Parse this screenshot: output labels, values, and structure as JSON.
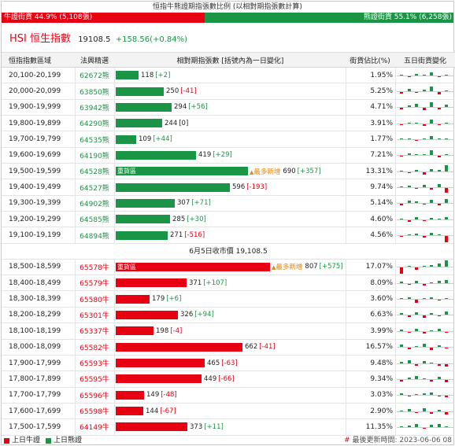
{
  "ratio_header": {
    "title": "恒指牛熊證期指張數比例 (以相對期指張數計算)",
    "bull_label": "牛證街貨 44.9% (5,108張)",
    "bear_label": "熊證街貨 55.1% (6,258張)",
    "bull_fraction": 0.449,
    "bear_fraction": 0.551
  },
  "index": {
    "name": "HSI 恒生指數",
    "value": "19108.5",
    "change": "+158.56(+0.84%)"
  },
  "table": {
    "headers": {
      "range": "恒指指數區域",
      "code": "法興精選",
      "contracts": "相對期指張數 [括號內為一日變化]",
      "ratio": "街貨佔比(%)",
      "five_day": "五日街貨變化"
    },
    "heavy_label": "重貨區",
    "new_high_label": "最多新增",
    "bear_rows": [
      {
        "range": "20,100-20,199",
        "code": "62672熊",
        "count": "118",
        "delta": "[+2]",
        "sign": "pos",
        "ratio": "1.95%",
        "spark": [
          1,
          -1,
          2,
          1,
          4,
          -1,
          1
        ]
      },
      {
        "range": "20,000-20,099",
        "code": "63850熊",
        "count": "250",
        "delta": "[-41]",
        "sign": "neg",
        "ratio": "5.25%",
        "spark": [
          -2,
          3,
          -1,
          2,
          6,
          -3,
          1
        ]
      },
      {
        "range": "19,900-19,999",
        "code": "63942熊",
        "count": "294",
        "delta": "[+56]",
        "sign": "pos",
        "ratio": "4.71%",
        "spark": [
          -2,
          2,
          4,
          -3,
          6,
          -2,
          3
        ]
      },
      {
        "range": "19,800-19,899",
        "code": "64290熊",
        "count": "244",
        "delta": "[0]",
        "sign": "zero",
        "ratio": "3.91%",
        "spark": [
          -1,
          1,
          1,
          -2,
          5,
          -1,
          1
        ]
      },
      {
        "range": "19,700-19,799",
        "code": "64535熊",
        "count": "109",
        "delta": "[+44]",
        "sign": "pos",
        "ratio": "1.77%",
        "spark": [
          0,
          1,
          -1,
          1,
          4,
          1,
          0
        ]
      },
      {
        "range": "19,600-19,699",
        "code": "64190熊",
        "count": "419",
        "delta": "[+29]",
        "sign": "pos",
        "ratio": "7.21%",
        "spark": [
          -1,
          2,
          1,
          1,
          6,
          -2,
          1
        ]
      },
      {
        "range": "19,500-19,599",
        "code": "64528熊",
        "count": "690",
        "delta": "[+357]",
        "sign": "pos",
        "ratio": "13.31%",
        "spark": [
          1,
          -1,
          2,
          -3,
          3,
          2,
          8
        ],
        "heavy": true,
        "new_high": true
      },
      {
        "range": "19,400-19,499",
        "code": "64527熊",
        "count": "596",
        "delta": "[-193]",
        "sign": "neg",
        "ratio": "9.74%",
        "spark": [
          1,
          2,
          -1,
          3,
          -2,
          4,
          -6
        ]
      },
      {
        "range": "19,300-19,399",
        "code": "64902熊",
        "count": "307",
        "delta": "[+71]",
        "sign": "pos",
        "ratio": "5.14%",
        "spark": [
          -2,
          3,
          2,
          -1,
          4,
          -2,
          5
        ]
      },
      {
        "range": "19,200-19,299",
        "code": "64585熊",
        "count": "285",
        "delta": "[+30]",
        "sign": "pos",
        "ratio": "4.60%",
        "spark": [
          1,
          -2,
          3,
          -1,
          2,
          1,
          3
        ]
      },
      {
        "range": "19,100-19,199",
        "code": "64894熊",
        "count": "271",
        "delta": "[-516]",
        "sign": "neg",
        "ratio": "4.56%",
        "spark": [
          -1,
          1,
          2,
          -2,
          3,
          1,
          -8
        ]
      }
    ],
    "mid_label": "6月5日收市價 19,108.5",
    "bull_rows": [
      {
        "range": "18,500-18,599",
        "code": "65578牛",
        "count": "807",
        "delta": "[+575]",
        "sign": "pos",
        "ratio": "17.07%",
        "spark": [
          -8,
          0,
          -3,
          1,
          2,
          4,
          8
        ],
        "heavy": true,
        "new_high": true
      },
      {
        "range": "18,400-18,499",
        "code": "65579牛",
        "count": "371",
        "delta": "[+107]",
        "sign": "pos",
        "ratio": "8.09%",
        "spark": [
          2,
          -1,
          3,
          -2,
          1,
          3,
          4
        ]
      },
      {
        "range": "18,300-18,399",
        "code": "65580牛",
        "count": "179",
        "delta": "[+6]",
        "sign": "pos",
        "ratio": "3.60%",
        "spark": [
          1,
          2,
          -4,
          1,
          2,
          -1,
          1
        ]
      },
      {
        "range": "18,200-18,299",
        "code": "65301牛",
        "count": "326",
        "delta": "[+94]",
        "sign": "pos",
        "ratio": "6.63%",
        "spark": [
          2,
          -2,
          3,
          -3,
          2,
          -1,
          4
        ]
      },
      {
        "range": "18,100-18,199",
        "code": "65337牛",
        "count": "198",
        "delta": "[-4]",
        "sign": "neg",
        "ratio": "3.99%",
        "spark": [
          2,
          -1,
          3,
          -2,
          1,
          3,
          -1
        ]
      },
      {
        "range": "18,000-18,099",
        "code": "65582牛",
        "count": "662",
        "delta": "[-41]",
        "sign": "neg",
        "ratio": "16.57%",
        "spark": [
          3,
          -2,
          1,
          4,
          -3,
          2,
          -1
        ]
      },
      {
        "range": "17,900-17,999",
        "code": "65593牛",
        "count": "465",
        "delta": "[-63]",
        "sign": "neg",
        "ratio": "9.48%",
        "spark": [
          2,
          4,
          -2,
          3,
          1,
          -2,
          -3
        ]
      },
      {
        "range": "17,800-17,899",
        "code": "65595牛",
        "count": "449",
        "delta": "[-66]",
        "sign": "neg",
        "ratio": "9.34%",
        "spark": [
          -2,
          2,
          4,
          1,
          -2,
          3,
          -3
        ]
      },
      {
        "range": "17,700-17,799",
        "code": "65596牛",
        "count": "149",
        "delta": "[-48]",
        "sign": "neg",
        "ratio": "3.03%",
        "spark": [
          2,
          -1,
          1,
          2,
          3,
          -1,
          -2
        ]
      },
      {
        "range": "17,600-17,699",
        "code": "65598牛",
        "count": "144",
        "delta": "[-67]",
        "sign": "neg",
        "ratio": "2.90%",
        "spark": [
          1,
          3,
          -1,
          4,
          -2,
          2,
          -3
        ]
      },
      {
        "range": "17,500-17,599",
        "code": "64149牛",
        "count": "373",
        "delta": "[+11]",
        "sign": "pos",
        "ratio": "11.35%",
        "spark": [
          1,
          2,
          4,
          -1,
          3,
          4,
          1
        ]
      }
    ]
  },
  "legend": {
    "bull": "上日牛證",
    "bear": "上日熊證",
    "bull_color": "#e60012",
    "bear_color": "#1a9545"
  },
  "updated": {
    "mark": "#",
    "text": "最後更新時間: 2023-06-06 08"
  },
  "colors": {
    "bull": "#e60012",
    "bear": "#1a9545",
    "new_high": "#e8850c"
  }
}
